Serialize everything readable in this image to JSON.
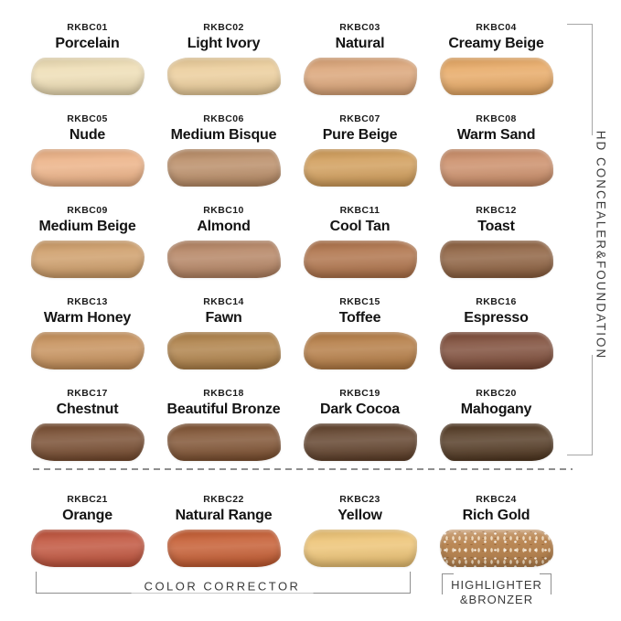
{
  "side_label": "HD CONCEALER&FOUNDATION",
  "bottom": {
    "color_corrector": "COLOR CORRECTOR",
    "highlighter_line1": "HIGHLIGHTER",
    "highlighter_line2": "&BRONZER"
  },
  "palette": {
    "background": "#ffffff",
    "label_text": "#141414",
    "annotation_text": "#3a3a3a",
    "bracket_line": "#a6a6a6",
    "dashed_line": "#8f8f8f"
  },
  "shades": [
    {
      "code": "RKBC01",
      "name": "Porcelain",
      "color": "#EDDCB2"
    },
    {
      "code": "RKBC02",
      "name": "Light Ivory",
      "color": "#EACB97"
    },
    {
      "code": "RKBC03",
      "name": "Natural",
      "color": "#D9A173"
    },
    {
      "code": "RKBC04",
      "name": "Creamy Beige",
      "color": "#E6A660"
    },
    {
      "code": "RKBC05",
      "name": "Nude",
      "color": "#EBAF82"
    },
    {
      "code": "RKBC06",
      "name": "Medium Bisque",
      "color": "#B78962"
    },
    {
      "code": "RKBC07",
      "name": "Pure Beige",
      "color": "#CF9A55"
    },
    {
      "code": "RKBC08",
      "name": "Warm Sand",
      "color": "#C98A64"
    },
    {
      "code": "RKBC09",
      "name": "Medium Beige",
      "color": "#CC9A64"
    },
    {
      "code": "RKBC10",
      "name": "Almond",
      "color": "#B2805E"
    },
    {
      "code": "RKBC11",
      "name": "Cool Tan",
      "color": "#AC6E44"
    },
    {
      "code": "RKBC12",
      "name": "Toast",
      "color": "#8A5C3A"
    },
    {
      "code": "RKBC13",
      "name": "Warm Honey",
      "color": "#C48D56"
    },
    {
      "code": "RKBC14",
      "name": "Fawn",
      "color": "#AC7D43"
    },
    {
      "code": "RKBC15",
      "name": "Toffee",
      "color": "#B2783F"
    },
    {
      "code": "RKBC16",
      "name": "Espresso",
      "color": "#7A4733"
    },
    {
      "code": "RKBC17",
      "name": "Chestnut",
      "color": "#73472A"
    },
    {
      "code": "RKBC18",
      "name": "Beautiful Bronze",
      "color": "#7B4D2C"
    },
    {
      "code": "RKBC19",
      "name": "Dark Cocoa",
      "color": "#5C3C25"
    },
    {
      "code": "RKBC20",
      "name": "Mahogany",
      "color": "#4E341D"
    },
    {
      "code": "RKBC21",
      "name": "Orange",
      "color": "#BE4E36"
    },
    {
      "code": "RKBC22",
      "name": "Natural Range",
      "color": "#C3572B"
    },
    {
      "code": "RKBC23",
      "name": "Yellow",
      "color": "#ECC170"
    },
    {
      "code": "RKBC24",
      "name": "Rich Gold",
      "color": "#B8834E",
      "glitter": true
    }
  ],
  "chart_data": {
    "type": "table",
    "title": "HD CONCEALER&FOUNDATION shade chart",
    "columns": [
      "code",
      "name",
      "group",
      "color"
    ],
    "rows": [
      [
        "RKBC01",
        "Porcelain",
        "HD CONCEALER&FOUNDATION",
        "#EDDCB2"
      ],
      [
        "RKBC02",
        "Light Ivory",
        "HD CONCEALER&FOUNDATION",
        "#EACB97"
      ],
      [
        "RKBC03",
        "Natural",
        "HD CONCEALER&FOUNDATION",
        "#D9A173"
      ],
      [
        "RKBC04",
        "Creamy Beige",
        "HD CONCEALER&FOUNDATION",
        "#E6A660"
      ],
      [
        "RKBC05",
        "Nude",
        "HD CONCEALER&FOUNDATION",
        "#EBAF82"
      ],
      [
        "RKBC06",
        "Medium Bisque",
        "HD CONCEALER&FOUNDATION",
        "#B78962"
      ],
      [
        "RKBC07",
        "Pure Beige",
        "HD CONCEALER&FOUNDATION",
        "#CF9A55"
      ],
      [
        "RKBC08",
        "Warm Sand",
        "HD CONCEALER&FOUNDATION",
        "#C98A64"
      ],
      [
        "RKBC09",
        "Medium Beige",
        "HD CONCEALER&FOUNDATION",
        "#CC9A64"
      ],
      [
        "RKBC10",
        "Almond",
        "HD CONCEALER&FOUNDATION",
        "#B2805E"
      ],
      [
        "RKBC11",
        "Cool Tan",
        "HD CONCEALER&FOUNDATION",
        "#AC6E44"
      ],
      [
        "RKBC12",
        "Toast",
        "HD CONCEALER&FOUNDATION",
        "#8A5C3A"
      ],
      [
        "RKBC13",
        "Warm Honey",
        "HD CONCEALER&FOUNDATION",
        "#C48D56"
      ],
      [
        "RKBC14",
        "Fawn",
        "HD CONCEALER&FOUNDATION",
        "#AC7D43"
      ],
      [
        "RKBC15",
        "Toffee",
        "HD CONCEALER&FOUNDATION",
        "#B2783F"
      ],
      [
        "RKBC16",
        "Espresso",
        "HD CONCEALER&FOUNDATION",
        "#7A4733"
      ],
      [
        "RKBC17",
        "Chestnut",
        "HD CONCEALER&FOUNDATION",
        "#73472A"
      ],
      [
        "RKBC18",
        "Beautiful Bronze",
        "HD CONCEALER&FOUNDATION",
        "#7B4D2C"
      ],
      [
        "RKBC19",
        "Dark Cocoa",
        "HD CONCEALER&FOUNDATION",
        "#5C3C25"
      ],
      [
        "RKBC20",
        "Mahogany",
        "HD CONCEALER&FOUNDATION",
        "#4E341D"
      ],
      [
        "RKBC21",
        "Orange",
        "COLOR CORRECTOR",
        "#BE4E36"
      ],
      [
        "RKBC22",
        "Natural Range",
        "COLOR CORRECTOR",
        "#C3572B"
      ],
      [
        "RKBC23",
        "Yellow",
        "COLOR CORRECTOR",
        "#ECC170"
      ],
      [
        "RKBC24",
        "Rich Gold",
        "HIGHLIGHTER &BRONZER",
        "#B8834E"
      ]
    ]
  }
}
